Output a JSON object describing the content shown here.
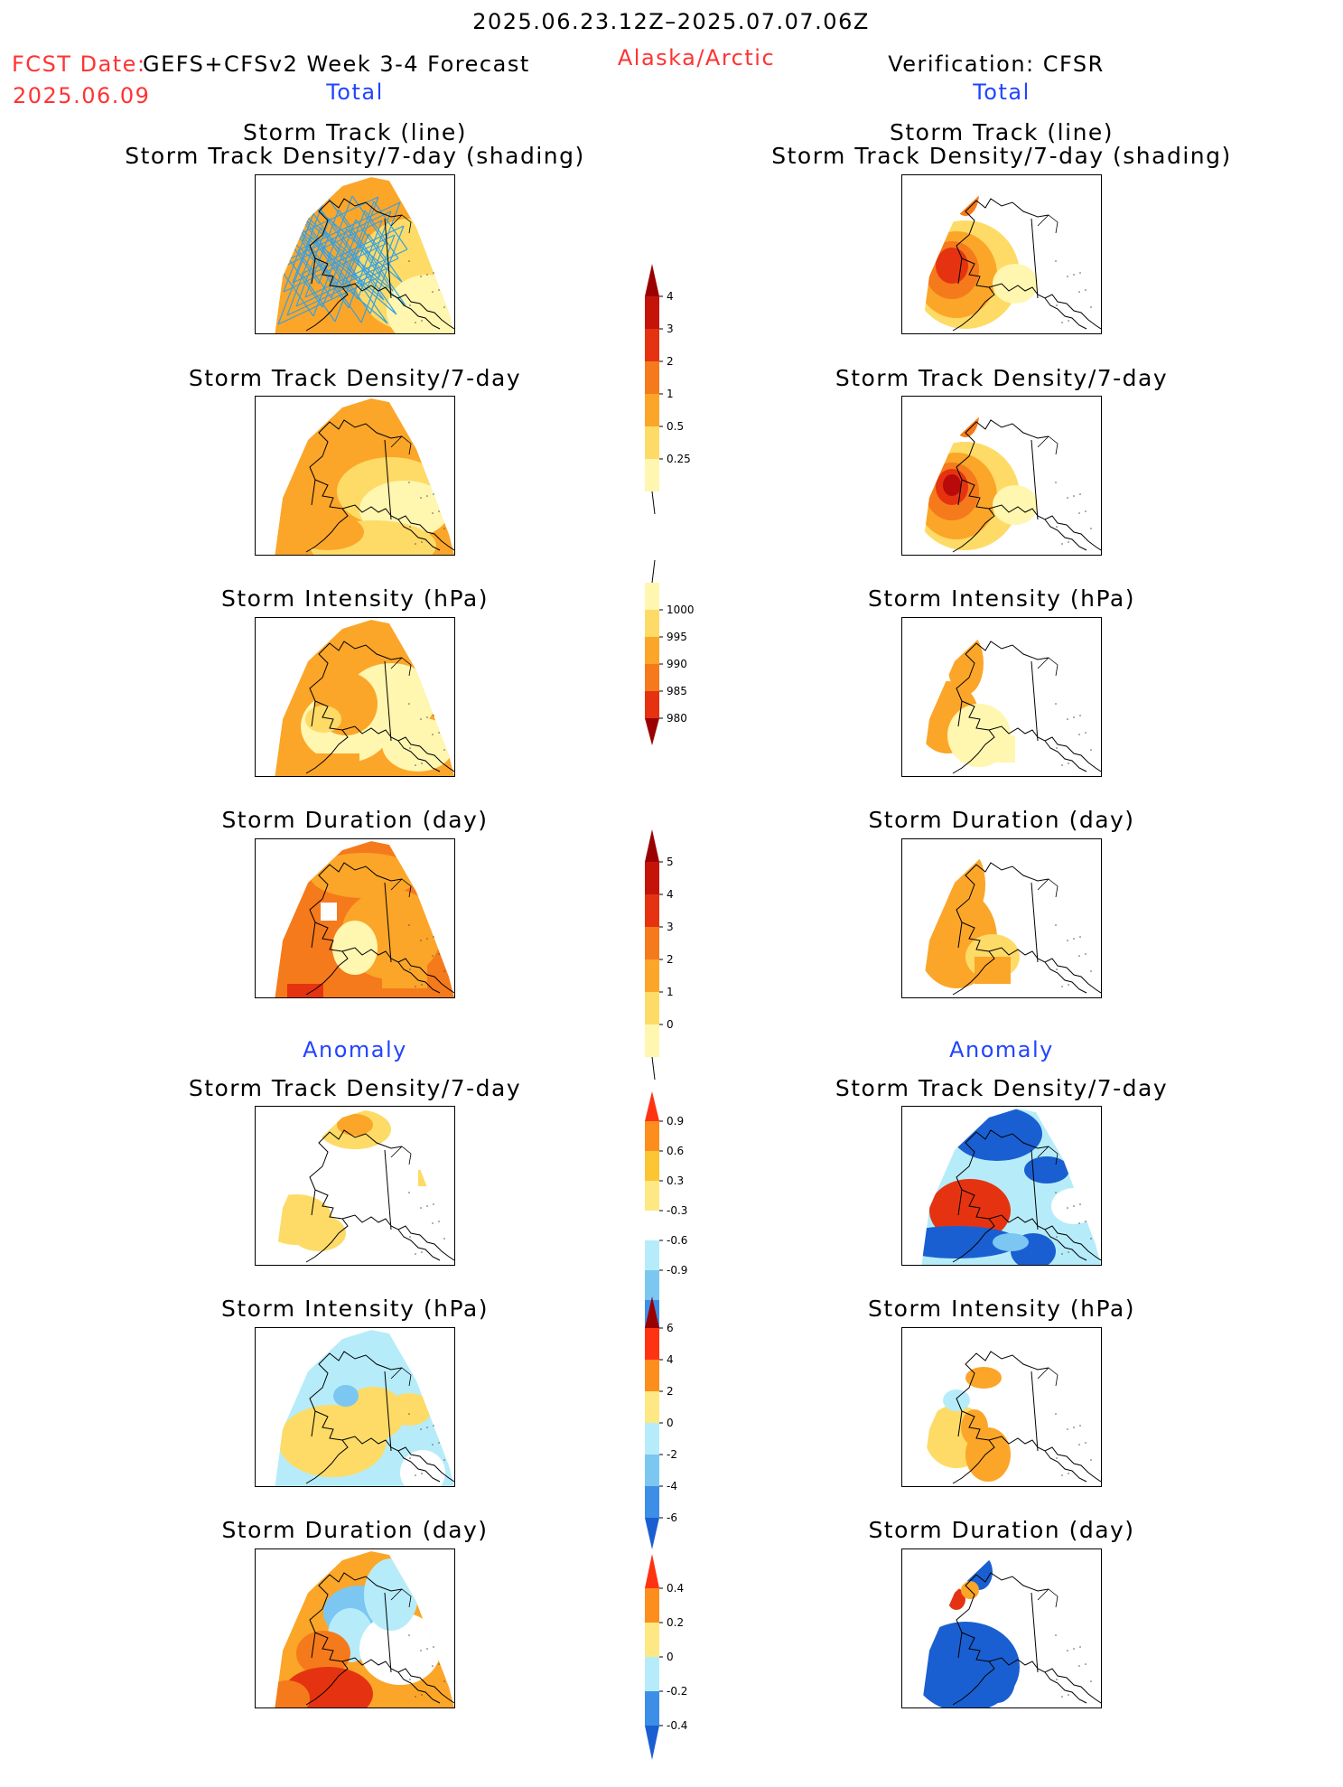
{
  "header": {
    "period": "2025.06.23.12Z–2025.07.07.06Z",
    "fcst_date_label": "FCST Date:",
    "fcst_date": "2025.06.09",
    "model": "GEFS+CFSv2 Week 3-4 Forecast",
    "region": "Alaska/Arctic",
    "verification": "Verification: CFSR"
  },
  "sections": {
    "total": "Total",
    "anomaly": "Anomaly"
  },
  "panel_titles": {
    "track_line": "Storm Track (line)",
    "track_density_shading": "Storm Track Density/7-day (shading)",
    "track_density": "Storm Track Density/7-day",
    "intensity": "Storm Intensity (hPa)",
    "duration": "Storm Duration (day)"
  },
  "colorbars": {
    "density_total": {
      "labels": [
        "0.25",
        "0.5",
        "1",
        "2",
        "3",
        "4"
      ],
      "colors": [
        "#fff6b0",
        "#fddb66",
        "#fba629",
        "#f57a1b",
        "#e53311",
        "#c4140a",
        "#9b0000"
      ]
    },
    "intensity_total": {
      "labels": [
        "1000",
        "995",
        "990",
        "985",
        "980"
      ],
      "colors": [
        "#fff6b0",
        "#fddb66",
        "#fba629",
        "#f57a1b",
        "#e53311",
        "#9b0000"
      ]
    },
    "duration_total": {
      "labels": [
        "0",
        "1",
        "2",
        "3",
        "4",
        "5"
      ],
      "colors": [
        "#fff6b0",
        "#fddb66",
        "#fba629",
        "#f57a1b",
        "#e53311",
        "#c4140a",
        "#9b0000"
      ]
    },
    "density_anom": {
      "labels": [
        "0.9",
        "0.6",
        "0.3",
        "-0.3",
        "-0.6",
        "-0.9"
      ],
      "colors": [
        "#ff3311",
        "#fb8e1c",
        "#fbc533",
        "#fde883",
        "#ffffff",
        "#b6ecfa",
        "#7cc6f2",
        "#3d8ee6",
        "#1a5fd1"
      ]
    },
    "intensity_anom": {
      "labels": [
        "6",
        "4",
        "2",
        "0",
        "-2",
        "-4",
        "-6"
      ],
      "colors": [
        "#9b0000",
        "#ff3311",
        "#fb8e1c",
        "#fde883",
        "#b6ecfa",
        "#7cc6f2",
        "#3d8ee6",
        "#1a5fd1"
      ]
    },
    "duration_anom": {
      "labels": [
        "0.4",
        "0.2",
        "0",
        "-0.2",
        "-0.4"
      ],
      "colors": [
        "#ff3311",
        "#fb8e1c",
        "#fde883",
        "#b6ecfa",
        "#3d8ee6",
        "#1a5fd1"
      ]
    }
  },
  "palette": {
    "bg": "#ffffff",
    "pale": "#fff6b0",
    "light": "#fddb66",
    "orange": "#fba629",
    "dorange": "#f57a1b",
    "red": "#e53311",
    "dred": "#b80a0a",
    "cyan": "#b6ecfa",
    "lblue": "#7cc6f2",
    "blue": "#1a5fd1",
    "track": "#3aa0e0"
  }
}
